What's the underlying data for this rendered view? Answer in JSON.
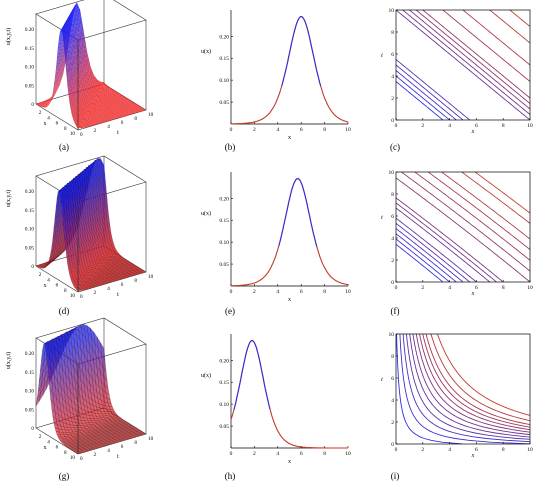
{
  "colors": {
    "curve_blue": "#2f2fe0",
    "curve_red": "#c23a2a",
    "surface_blue": "#1f1ff0",
    "surface_red": "#ee2b2b",
    "frame": "#333333"
  },
  "chart_data": [
    {
      "panel": "a",
      "type": "surface",
      "ylabel": "u(x,y,t)",
      "xlabel": "x",
      "tlabel": "t",
      "zticks": [
        "0.20",
        "0.15",
        "0.10",
        "0.05",
        "0"
      ],
      "xticks": [
        "2",
        "4",
        "6",
        "8",
        "10"
      ],
      "tticks": [
        "0",
        "2",
        "4",
        "6",
        "8",
        "10"
      ],
      "zlim": [
        0,
        0.24
      ],
      "xlim": [
        0,
        10
      ],
      "tlim": [
        0,
        10
      ],
      "peak": {
        "x": 6,
        "t": 0,
        "u": 0.24
      },
      "speed": 1,
      "style": "dense"
    },
    {
      "panel": "b",
      "type": "line",
      "ylabel": "u(x)",
      "xlabel": "x",
      "xticks": [
        "0",
        "2",
        "4",
        "6",
        "8",
        "10"
      ],
      "yticks": [
        "0.05",
        "0.10",
        "0.15",
        "0.20"
      ],
      "xlim": [
        0,
        10
      ],
      "ylim": [
        0,
        0.26
      ],
      "peak": {
        "x": 6,
        "u": 0.245
      },
      "width": 1.5
    },
    {
      "panel": "c",
      "type": "characteristics",
      "ylabel": "t",
      "xlabel": "x",
      "xticks": [
        "0",
        "2",
        "4",
        "6",
        "8",
        "10"
      ],
      "yticks": [
        "0",
        "2",
        "4",
        "6",
        "8",
        "10"
      ],
      "xlim": [
        0,
        10
      ],
      "ylim": [
        0,
        10
      ],
      "family": "straight",
      "lines": [
        -6.5,
        -6,
        -5.5,
        -5,
        -4.5,
        0,
        0.5,
        1,
        1.5,
        2,
        3.5,
        5,
        7,
        8.5
      ]
    },
    {
      "panel": "d",
      "type": "surface",
      "ylabel": "u(x,y,t)",
      "xlabel": "x",
      "tlabel": "t",
      "zticks": [
        "0.20",
        "0.15",
        "0.10",
        "0.05",
        "0"
      ],
      "xticks": [
        "2",
        "4",
        "6",
        "8",
        "10"
      ],
      "tticks": [
        "0",
        "2",
        "4",
        "6",
        "8",
        "10"
      ],
      "zlim": [
        0,
        0.24
      ],
      "xlim": [
        0,
        10
      ],
      "tlim": [
        0,
        10
      ],
      "peak": {
        "x": 5.5,
        "t": 0,
        "u": 0.24
      },
      "speed": 0.6,
      "style": "mesh"
    },
    {
      "panel": "e",
      "type": "line",
      "ylabel": "u(x)",
      "xlabel": "x",
      "xticks": [
        "0",
        "2",
        "4",
        "6",
        "8",
        "10"
      ],
      "yticks": [
        "0.05",
        "0.10",
        "0.15",
        "0.20"
      ],
      "xlim": [
        0,
        10
      ],
      "ylim": [
        0,
        0.26
      ],
      "peak": {
        "x": 5.7,
        "u": 0.245
      },
      "width": 1.5
    },
    {
      "panel": "f",
      "type": "characteristics",
      "ylabel": "t",
      "xlabel": "x",
      "xticks": [
        "0",
        "2",
        "4",
        "6",
        "8",
        "10"
      ],
      "yticks": [
        "0",
        "2",
        "4",
        "6",
        "8",
        "10"
      ],
      "xlim": [
        0,
        10
      ],
      "ylim": [
        0,
        10
      ],
      "family": "slightly-curved",
      "lines": [
        -6.5,
        -6,
        -5.5,
        -5,
        -4.5,
        -4,
        -3,
        -2.5,
        -2,
        0,
        1,
        2,
        3,
        4,
        5.5,
        6.5
      ]
    },
    {
      "panel": "g",
      "type": "surface",
      "ylabel": "u(x,y,t)",
      "xlabel": "x",
      "tlabel": "t",
      "zticks": [
        "0.20",
        "0.15",
        "0.10",
        "0.05",
        "0"
      ],
      "xticks": [
        "2",
        "4",
        "6",
        "8",
        "10"
      ],
      "tticks": [
        "0",
        "2",
        "4",
        "6",
        "8",
        "10"
      ],
      "zlim": [
        0,
        0.24
      ],
      "xlim": [
        0,
        10
      ],
      "tlim": [
        0,
        10
      ],
      "peak": {
        "x": 2,
        "t": 0,
        "u": 0.24
      },
      "speed": 0.3,
      "style": "ribbed"
    },
    {
      "panel": "h",
      "type": "line",
      "ylabel": "u(x)",
      "xlabel": "x",
      "xticks": [
        "0",
        "2",
        "4",
        "6",
        "8",
        "10"
      ],
      "yticks": [
        "0.05",
        "0.10",
        "0.15",
        "0.20"
      ],
      "xlim": [
        0,
        10
      ],
      "ylim": [
        0,
        0.26
      ],
      "peak": {
        "x": 1.8,
        "u": 0.245
      },
      "width": 1.4
    },
    {
      "panel": "i",
      "type": "characteristics",
      "ylabel": "t",
      "xlabel": "x",
      "xticks": [
        "0",
        "2",
        "4",
        "6",
        "8",
        "10"
      ],
      "yticks": [
        "0",
        "2",
        "4",
        "6",
        "8",
        "10"
      ],
      "xlim": [
        0,
        10
      ],
      "ylim": [
        0,
        10
      ],
      "family": "curved",
      "lines": [
        0.2,
        0.4,
        0.6,
        0.8,
        1.0,
        1.2,
        1.4,
        1.6,
        1.8,
        2.0,
        2.3,
        2.7
      ]
    }
  ],
  "captions": [
    "(a)",
    "(b)",
    "(c)",
    "(d)",
    "(e)",
    "(f)",
    "(g)",
    "(h)",
    "(i)"
  ]
}
